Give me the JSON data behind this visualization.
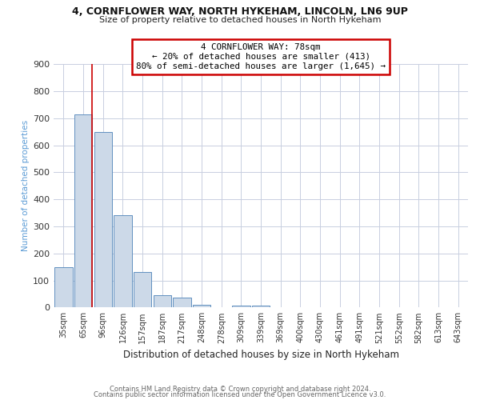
{
  "title": "4, CORNFLOWER WAY, NORTH HYKEHAM, LINCOLN, LN6 9UP",
  "subtitle": "Size of property relative to detached houses in North Hykeham",
  "xlabel": "Distribution of detached houses by size in North Hykeham",
  "ylabel": "Number of detached properties",
  "categories": [
    "35sqm",
    "65sqm",
    "96sqm",
    "126sqm",
    "157sqm",
    "187sqm",
    "217sqm",
    "248sqm",
    "278sqm",
    "309sqm",
    "339sqm",
    "369sqm",
    "400sqm",
    "430sqm",
    "461sqm",
    "491sqm",
    "521sqm",
    "552sqm",
    "582sqm",
    "613sqm",
    "643sqm"
  ],
  "values": [
    150,
    715,
    650,
    340,
    130,
    45,
    35,
    10,
    0,
    8,
    8,
    0,
    0,
    0,
    0,
    0,
    0,
    0,
    0,
    0,
    0
  ],
  "bar_color": "#ccd9e8",
  "bar_edge_color": "#6090c0",
  "property_line_color": "#cc0000",
  "annotation_text": "4 CORNFLOWER WAY: 78sqm\n← 20% of detached houses are smaller (413)\n80% of semi-detached houses are larger (1,645) →",
  "annotation_box_color": "#ffffff",
  "annotation_box_edge_color": "#cc0000",
  "footer1": "Contains HM Land Registry data © Crown copyright and database right 2024.",
  "footer2": "Contains public sector information licensed under the Open Government Licence v3.0.",
  "ylim": [
    0,
    900
  ],
  "background_color": "#ffffff",
  "grid_color": "#c8cfe0"
}
